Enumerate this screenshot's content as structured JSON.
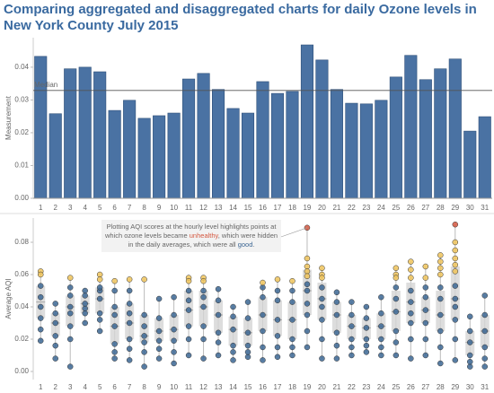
{
  "title": "Comparing aggregated and disaggregated charts for daily Ozone levels in New York County July 2015",
  "chart_data": [
    {
      "type": "bar",
      "y_label": "Measurement",
      "color": "#4a72a3",
      "categories": [
        "1",
        "2",
        "3",
        "4",
        "5",
        "6",
        "7",
        "8",
        "9",
        "10",
        "11",
        "12",
        "13",
        "14",
        "15",
        "16",
        "17",
        "18",
        "19",
        "20",
        "21",
        "22",
        "23",
        "24",
        "25",
        "26",
        "27",
        "28",
        "29",
        "30",
        "31"
      ],
      "values": [
        0.0433,
        0.0258,
        0.0395,
        0.04,
        0.0386,
        0.0268,
        0.0299,
        0.0244,
        0.0252,
        0.026,
        0.0364,
        0.0381,
        0.0332,
        0.0274,
        0.026,
        0.0356,
        0.032,
        0.0326,
        0.0468,
        0.0422,
        0.0332,
        0.029,
        0.0288,
        0.0299,
        0.037,
        0.0436,
        0.0362,
        0.0395,
        0.0425,
        0.0205,
        0.0249
      ],
      "ylim": [
        0,
        0.049
      ],
      "yticks": [
        {
          "value": 0,
          "label": "0.00"
        },
        {
          "value": 0.01,
          "label": "0.01"
        },
        {
          "value": 0.02,
          "label": "0.02"
        },
        {
          "value": 0.03,
          "label": "0.03"
        },
        {
          "value": 0.04,
          "label": "0.04"
        }
      ],
      "reference_line": {
        "label": "Median",
        "value": 0.0329
      }
    },
    {
      "type": "box",
      "y_label": "Average AQI",
      "categories": [
        "1",
        "2",
        "3",
        "4",
        "5",
        "6",
        "7",
        "8",
        "9",
        "10",
        "11",
        "12",
        "13",
        "14",
        "15",
        "16",
        "17",
        "18",
        "19",
        "20",
        "21",
        "22",
        "23",
        "24",
        "25",
        "26",
        "27",
        "28",
        "29",
        "30",
        "31"
      ],
      "ylim": [
        -0.005,
        0.095
      ],
      "yticks": [
        {
          "value": 0,
          "label": "0.00"
        },
        {
          "value": 0.02,
          "label": "0.02"
        },
        {
          "value": 0.04,
          "label": "0.04"
        },
        {
          "value": 0.06,
          "label": "0.06"
        },
        {
          "value": 0.08,
          "label": "0.08"
        }
      ],
      "colors": {
        "good": "#3c6794",
        "moderate": "#f0c45c",
        "unhealthy": "#d4573f",
        "box": "#d4d4d4"
      },
      "days": [
        {
          "min": 0.019,
          "q1": 0.033,
          "median": 0.043,
          "q3": 0.053,
          "max": 0.062,
          "good": [
            0.019,
            0.026,
            0.033,
            0.04,
            0.046,
            0.053
          ],
          "moderate": [
            0.062,
            0.06
          ],
          "unhealthy": []
        },
        {
          "min": 0.008,
          "q1": 0.022,
          "median": 0.03,
          "q3": 0.036,
          "max": 0.042,
          "good": [
            0.008,
            0.016,
            0.022,
            0.03,
            0.036,
            0.042
          ],
          "moderate": [],
          "unhealthy": []
        },
        {
          "min": 0.003,
          "q1": 0.028,
          "median": 0.04,
          "q3": 0.047,
          "max": 0.058,
          "good": [
            0.003,
            0.02,
            0.028,
            0.036,
            0.04,
            0.047,
            0.052
          ],
          "moderate": [
            0.058
          ],
          "unhealthy": []
        },
        {
          "min": 0.03,
          "q1": 0.036,
          "median": 0.042,
          "q3": 0.047,
          "max": 0.05,
          "good": [
            0.03,
            0.036,
            0.039,
            0.042,
            0.047,
            0.05
          ],
          "moderate": [],
          "unhealthy": []
        },
        {
          "min": 0.025,
          "q1": 0.036,
          "median": 0.045,
          "q3": 0.052,
          "max": 0.06,
          "good": [
            0.025,
            0.032,
            0.036,
            0.045,
            0.05,
            0.052
          ],
          "moderate": [
            0.06,
            0.057
          ],
          "unhealthy": []
        },
        {
          "min": 0.008,
          "q1": 0.017,
          "median": 0.028,
          "q3": 0.04,
          "max": 0.056,
          "good": [
            0.008,
            0.012,
            0.017,
            0.028,
            0.035,
            0.04,
            0.05
          ],
          "moderate": [
            0.056
          ],
          "unhealthy": []
        },
        {
          "min": 0.007,
          "q1": 0.02,
          "median": 0.03,
          "q3": 0.042,
          "max": 0.057,
          "good": [
            0.007,
            0.014,
            0.02,
            0.03,
            0.036,
            0.042,
            0.05
          ],
          "moderate": [
            0.057
          ],
          "unhealthy": []
        },
        {
          "min": 0.003,
          "q1": 0.018,
          "median": 0.022,
          "q3": 0.035,
          "max": 0.057,
          "good": [
            0.003,
            0.012,
            0.018,
            0.022,
            0.028,
            0.035
          ],
          "moderate": [
            0.057
          ],
          "unhealthy": []
        },
        {
          "min": 0.008,
          "q1": 0.019,
          "median": 0.025,
          "q3": 0.033,
          "max": 0.045,
          "good": [
            0.008,
            0.014,
            0.019,
            0.025,
            0.033,
            0.045
          ],
          "moderate": [],
          "unhealthy": []
        },
        {
          "min": 0.005,
          "q1": 0.019,
          "median": 0.026,
          "q3": 0.035,
          "max": 0.046,
          "good": [
            0.005,
            0.012,
            0.019,
            0.026,
            0.035,
            0.046
          ],
          "moderate": [],
          "unhealthy": []
        },
        {
          "min": 0.01,
          "q1": 0.028,
          "median": 0.038,
          "q3": 0.05,
          "max": 0.058,
          "good": [
            0.01,
            0.02,
            0.028,
            0.038,
            0.044,
            0.05
          ],
          "moderate": [
            0.058,
            0.056
          ],
          "unhealthy": []
        },
        {
          "min": 0.008,
          "q1": 0.028,
          "median": 0.04,
          "q3": 0.05,
          "max": 0.058,
          "good": [
            0.008,
            0.02,
            0.028,
            0.04,
            0.046,
            0.05
          ],
          "moderate": [
            0.058,
            0.056
          ],
          "unhealthy": []
        },
        {
          "min": 0.01,
          "q1": 0.024,
          "median": 0.035,
          "q3": 0.044,
          "max": 0.051,
          "good": [
            0.01,
            0.018,
            0.024,
            0.035,
            0.044,
            0.051
          ],
          "moderate": [],
          "unhealthy": []
        },
        {
          "min": 0.007,
          "q1": 0.016,
          "median": 0.026,
          "q3": 0.034,
          "max": 0.04,
          "good": [
            0.007,
            0.012,
            0.016,
            0.026,
            0.034,
            0.04
          ],
          "moderate": [],
          "unhealthy": []
        },
        {
          "min": 0.009,
          "q1": 0.016,
          "median": 0.024,
          "q3": 0.033,
          "max": 0.043,
          "good": [
            0.009,
            0.012,
            0.016,
            0.024,
            0.033,
            0.043
          ],
          "moderate": [],
          "unhealthy": []
        },
        {
          "min": 0.007,
          "q1": 0.025,
          "median": 0.035,
          "q3": 0.046,
          "max": 0.055,
          "good": [
            0.007,
            0.015,
            0.025,
            0.035,
            0.046,
            0.052
          ],
          "moderate": [
            0.055
          ],
          "unhealthy": []
        },
        {
          "min": 0.009,
          "q1": 0.022,
          "median": 0.032,
          "q3": 0.044,
          "max": 0.057,
          "good": [
            0.009,
            0.015,
            0.022,
            0.032,
            0.044,
            0.05
          ],
          "moderate": [
            0.057
          ],
          "unhealthy": []
        },
        {
          "min": 0.01,
          "q1": 0.02,
          "median": 0.032,
          "q3": 0.043,
          "max": 0.056,
          "good": [
            0.01,
            0.015,
            0.02,
            0.032,
            0.043,
            0.05
          ],
          "moderate": [
            0.056
          ],
          "unhealthy": []
        },
        {
          "min": 0.015,
          "q1": 0.035,
          "median": 0.05,
          "q3": 0.063,
          "max": 0.089,
          "good": [
            0.015,
            0.025,
            0.035,
            0.042,
            0.05,
            0.054
          ],
          "moderate": [
            0.07,
            0.065,
            0.062,
            0.059
          ],
          "unhealthy": [
            0.089
          ]
        },
        {
          "min": 0.008,
          "q1": 0.032,
          "median": 0.045,
          "q3": 0.055,
          "max": 0.064,
          "good": [
            0.008,
            0.02,
            0.032,
            0.04,
            0.045,
            0.052
          ],
          "moderate": [
            0.064,
            0.06,
            0.058
          ],
          "unhealthy": []
        },
        {
          "min": 0.008,
          "q1": 0.024,
          "median": 0.035,
          "q3": 0.043,
          "max": 0.049,
          "good": [
            0.008,
            0.016,
            0.024,
            0.035,
            0.043,
            0.049
          ],
          "moderate": [],
          "unhealthy": []
        },
        {
          "min": 0.01,
          "q1": 0.02,
          "median": 0.028,
          "q3": 0.035,
          "max": 0.043,
          "good": [
            0.01,
            0.015,
            0.02,
            0.028,
            0.035,
            0.043
          ],
          "moderate": [],
          "unhealthy": []
        },
        {
          "min": 0.012,
          "q1": 0.02,
          "median": 0.027,
          "q3": 0.033,
          "max": 0.04,
          "good": [
            0.012,
            0.016,
            0.02,
            0.027,
            0.033,
            0.04
          ],
          "moderate": [],
          "unhealthy": []
        },
        {
          "min": 0.01,
          "q1": 0.02,
          "median": 0.028,
          "q3": 0.036,
          "max": 0.046,
          "good": [
            0.01,
            0.015,
            0.02,
            0.028,
            0.036,
            0.046
          ],
          "moderate": [],
          "unhealthy": []
        },
        {
          "min": 0.01,
          "q1": 0.025,
          "median": 0.037,
          "q3": 0.05,
          "max": 0.064,
          "good": [
            0.01,
            0.018,
            0.025,
            0.037,
            0.045,
            0.052
          ],
          "moderate": [
            0.064,
            0.06,
            0.058
          ],
          "unhealthy": []
        },
        {
          "min": 0.008,
          "q1": 0.03,
          "median": 0.043,
          "q3": 0.055,
          "max": 0.068,
          "good": [
            0.008,
            0.02,
            0.03,
            0.036,
            0.043,
            0.05
          ],
          "moderate": [
            0.068,
            0.063,
            0.058
          ],
          "unhealthy": []
        },
        {
          "min": 0.01,
          "q1": 0.03,
          "median": 0.038,
          "q3": 0.046,
          "max": 0.065,
          "good": [
            0.01,
            0.02,
            0.03,
            0.038,
            0.046,
            0.052
          ],
          "moderate": [
            0.065,
            0.058
          ],
          "unhealthy": []
        },
        {
          "min": 0.005,
          "q1": 0.025,
          "median": 0.035,
          "q3": 0.05,
          "max": 0.072,
          "good": [
            0.005,
            0.015,
            0.025,
            0.035,
            0.045,
            0.052
          ],
          "moderate": [
            0.072,
            0.068,
            0.064,
            0.06
          ],
          "unhealthy": []
        },
        {
          "min": 0.007,
          "q1": 0.032,
          "median": 0.045,
          "q3": 0.065,
          "max": 0.091,
          "good": [
            0.007,
            0.02,
            0.032,
            0.04,
            0.045,
            0.053
          ],
          "moderate": [
            0.08,
            0.075,
            0.07,
            0.066,
            0.062
          ],
          "unhealthy": [
            0.091
          ]
        },
        {
          "min": 0.003,
          "q1": 0.01,
          "median": 0.018,
          "q3": 0.025,
          "max": 0.034,
          "good": [
            0.003,
            0.006,
            0.01,
            0.018,
            0.025,
            0.034
          ],
          "moderate": [],
          "unhealthy": []
        },
        {
          "min": 0.003,
          "q1": 0.015,
          "median": 0.025,
          "q3": 0.035,
          "max": 0.047,
          "good": [
            0.003,
            0.008,
            0.015,
            0.025,
            0.035,
            0.047
          ],
          "moderate": [],
          "unhealthy": []
        }
      ],
      "annotation": [
        "Plotting AQI scores at the hourly level highlights points at which ozone levels became ",
        "unhealthy",
        ", which were hidden in the daily averages, which were all ",
        "good",
        "."
      ]
    }
  ]
}
